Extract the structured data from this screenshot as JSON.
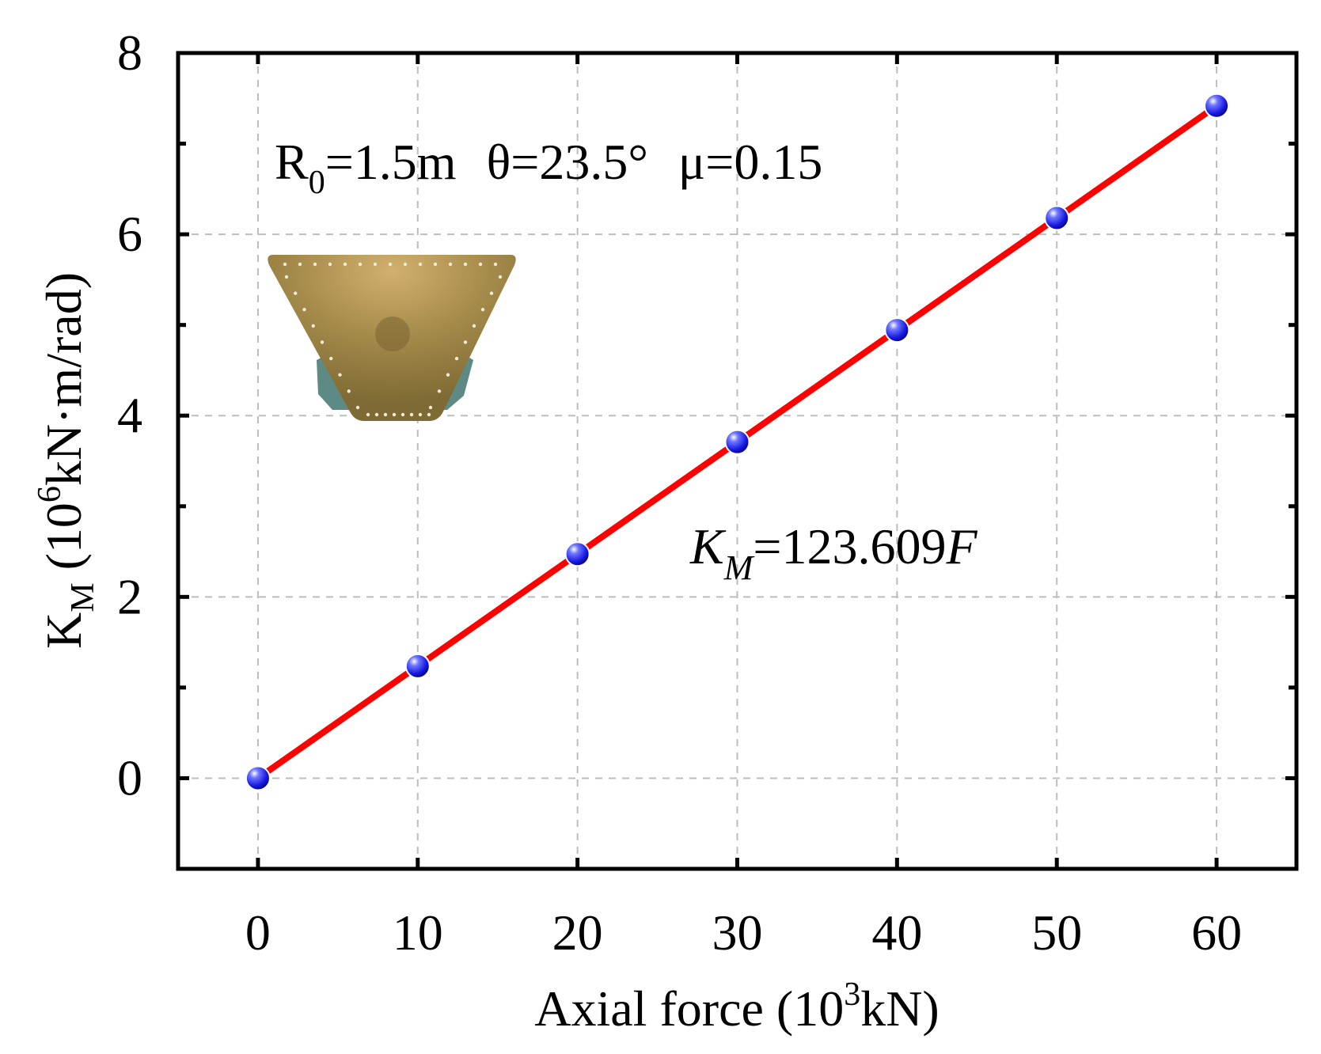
{
  "chart_data": {
    "type": "line",
    "xlabel": {
      "base": "Axial force (10",
      "sup": "3",
      "tail": "kN)"
    },
    "ylabel": {
      "base": "K",
      "sub": "M",
      "mid": " (10",
      "sup": "6",
      "tail": "kN·m/rad)"
    },
    "xlim": [
      -5,
      65
    ],
    "ylim": [
      -1,
      8
    ],
    "xticks": [
      0,
      10,
      20,
      30,
      40,
      50,
      60
    ],
    "yticks": [
      0,
      2,
      4,
      6,
      8
    ],
    "yticks_minor": [
      1,
      3,
      5,
      7
    ],
    "grid": true,
    "series": [
      {
        "name": "K_M",
        "x": [
          0,
          10,
          20,
          30,
          40,
          50,
          60
        ],
        "values": [
          0,
          1.236,
          2.472,
          3.708,
          4.944,
          6.18,
          7.417
        ],
        "line_color": "#ff0000",
        "marker_color": "#1a1aff"
      }
    ],
    "annotations": {
      "params": {
        "r_base": "R",
        "r_sub": "0",
        "r_val": "=1.5m",
        "theta": "θ=23.5°",
        "mu": "μ=0.15"
      },
      "equation": {
        "k": "K",
        "k_sub": "M",
        "rest": "=123.609",
        "var": "F"
      }
    },
    "inset_illustration": "truncated-cone-bearing"
  }
}
